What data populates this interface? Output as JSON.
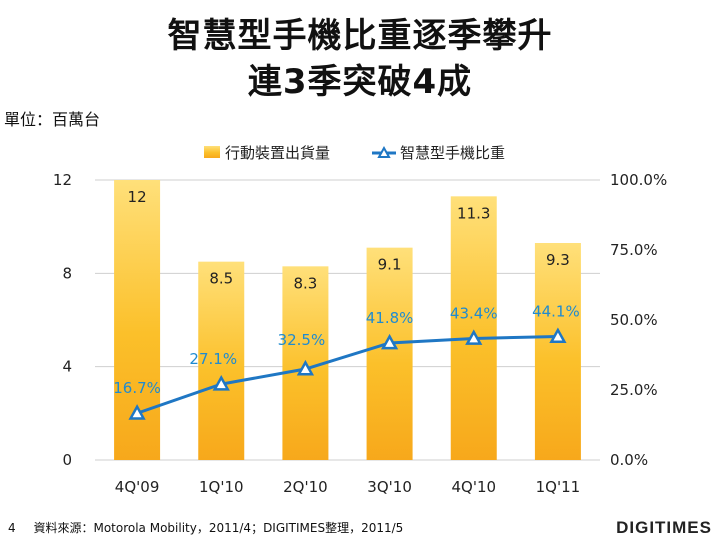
{
  "page": {
    "title_line1": "智慧型手機比重逐季攀升",
    "title_line2": "連3季突破4成",
    "unit_label": "單位：百萬台",
    "page_number": "4",
    "source_note": "資料來源：Motorola Mobility，2011/4；DIGITIMES整理，2011/5",
    "logo_text": "DIGITIMES"
  },
  "chart_data": {
    "type": "bar",
    "categories": [
      "4Q'09",
      "1Q'10",
      "2Q'10",
      "3Q'10",
      "4Q'10",
      "1Q'11"
    ],
    "series": [
      {
        "name": "行動裝置出貨量",
        "type": "bar",
        "axis": "left",
        "values": [
          12,
          8.5,
          8.3,
          9.1,
          11.3,
          9.3
        ],
        "labels": [
          "12",
          "8.5",
          "8.3",
          "9.1",
          "11.3",
          "9.3"
        ]
      },
      {
        "name": "智慧型手機比重",
        "type": "line",
        "axis": "right",
        "values": [
          16.7,
          27.1,
          32.5,
          41.8,
          43.4,
          44.1
        ],
        "labels": [
          "16.7%",
          "27.1%",
          "32.5%",
          "41.8%",
          "43.4%",
          "44.1%"
        ]
      }
    ],
    "y_left": {
      "min": 0,
      "max": 12,
      "ticks": [
        0,
        4,
        8,
        12
      ],
      "tick_labels": [
        "0",
        "4",
        "8",
        "12"
      ]
    },
    "y_right": {
      "min": 0,
      "max": 100,
      "ticks": [
        0,
        25,
        50,
        75,
        100
      ],
      "tick_labels": [
        "0.0%",
        "25.0%",
        "50.0%",
        "75.0%",
        "100.0%"
      ]
    },
    "legend_position": "top",
    "grid": true,
    "colors": {
      "bar_top": "#ffe07a",
      "bar_mid": "#fbc02a",
      "bar_bottom": "#f7a81b",
      "line": "#1f77c4",
      "line_label": "#1f8bd0",
      "grid": "#cfcfcf",
      "axis_text": "#222222"
    }
  }
}
